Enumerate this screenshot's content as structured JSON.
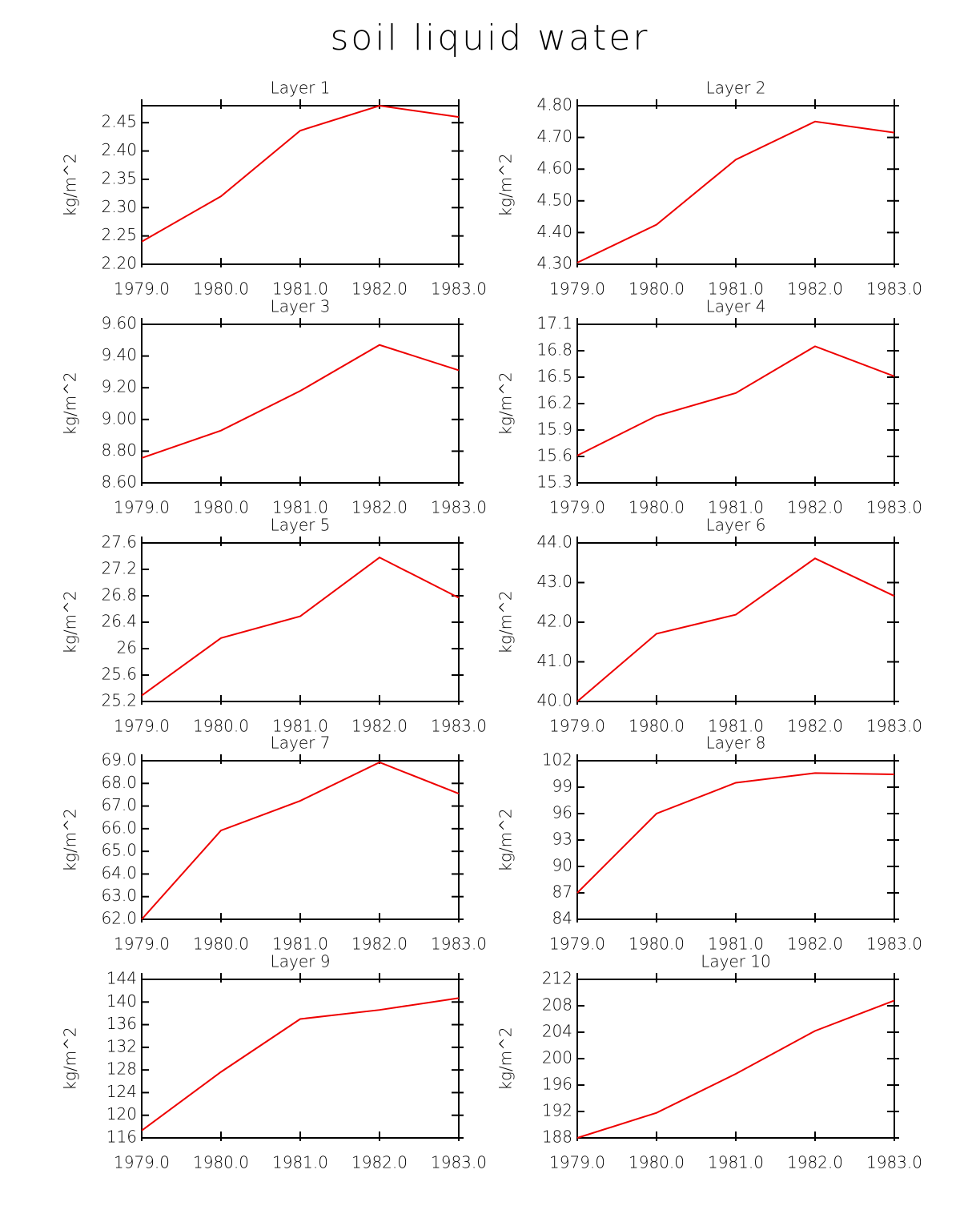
{
  "title": "soil liquid water",
  "chart_data": [
    {
      "type": "line",
      "title": "Layer 1",
      "ylabel": "kg/m^2",
      "x": [
        1979,
        1980,
        1981,
        1982,
        1983
      ],
      "xlim": [
        1979,
        1983
      ],
      "xticks": [
        {
          "value": 1979,
          "label": "1979.0"
        },
        {
          "value": 1980,
          "label": "1980.0"
        },
        {
          "value": 1981,
          "label": "1981.0"
        },
        {
          "value": 1982,
          "label": "1982.0"
        },
        {
          "value": 1983,
          "label": "1983.0"
        }
      ],
      "ylim": [
        2.2,
        2.48
      ],
      "yticks": [
        {
          "value": 2.2,
          "label": "2.20"
        },
        2.25,
        {
          "value": 2.3,
          "label": "2.30"
        },
        2.35,
        {
          "value": 2.4,
          "label": "2.40"
        },
        2.45
      ],
      "color": "#ee0000",
      "values": [
        2.24,
        2.32,
        2.436,
        2.48,
        2.46
      ]
    },
    {
      "type": "line",
      "title": "Layer 2",
      "ylabel": "kg/m^2",
      "x": [
        1979,
        1980,
        1981,
        1982,
        1983
      ],
      "xlim": [
        1979,
        1983
      ],
      "xticks": [
        {
          "value": 1979,
          "label": "1979.0"
        },
        {
          "value": 1980,
          "label": "1980.0"
        },
        {
          "value": 1981,
          "label": "1981.0"
        },
        {
          "value": 1982,
          "label": "1982.0"
        },
        {
          "value": 1983,
          "label": "1983.0"
        }
      ],
      "ylim": [
        4.3,
        4.8
      ],
      "yticks": [
        {
          "value": 4.3,
          "label": "4.30"
        },
        {
          "value": 4.4,
          "label": "4.40"
        },
        {
          "value": 4.5,
          "label": "4.50"
        },
        {
          "value": 4.6,
          "label": "4.60"
        },
        {
          "value": 4.7,
          "label": "4.70"
        },
        {
          "value": 4.8,
          "label": "4.80"
        }
      ],
      "color": "#ee0000",
      "values": [
        4.305,
        4.425,
        4.63,
        4.75,
        4.715
      ]
    },
    {
      "type": "line",
      "title": "Layer 3",
      "ylabel": "kg/m^2",
      "x": [
        1979,
        1980,
        1981,
        1982,
        1983
      ],
      "xlim": [
        1979,
        1983
      ],
      "xticks": [
        {
          "value": 1979,
          "label": "1979.0"
        },
        {
          "value": 1980,
          "label": "1980.0"
        },
        {
          "value": 1981,
          "label": "1981.0"
        },
        {
          "value": 1982,
          "label": "1982.0"
        },
        {
          "value": 1983,
          "label": "1983.0"
        }
      ],
      "ylim": [
        8.6,
        9.6
      ],
      "yticks": [
        {
          "value": 8.6,
          "label": "8.60"
        },
        {
          "value": 8.8,
          "label": "8.80"
        },
        {
          "value": 9.0,
          "label": "9.00"
        },
        {
          "value": 9.2,
          "label": "9.20"
        },
        {
          "value": 9.4,
          "label": "9.40"
        },
        {
          "value": 9.6,
          "label": "9.60"
        }
      ],
      "color": "#ee0000",
      "values": [
        8.757,
        8.93,
        9.18,
        9.47,
        9.31
      ]
    },
    {
      "type": "line",
      "title": "Layer 4",
      "ylabel": "kg/m^2",
      "x": [
        1979,
        1980,
        1981,
        1982,
        1983
      ],
      "xlim": [
        1979,
        1983
      ],
      "xticks": [
        {
          "value": 1979,
          "label": "1979.0"
        },
        {
          "value": 1980,
          "label": "1980.0"
        },
        {
          "value": 1981,
          "label": "1981.0"
        },
        {
          "value": 1982,
          "label": "1982.0"
        },
        {
          "value": 1983,
          "label": "1983.0"
        }
      ],
      "ylim": [
        15.3,
        17.1
      ],
      "yticks": [
        15.3,
        15.6,
        15.9,
        16.2,
        16.5,
        16.8,
        17.1
      ],
      "color": "#ee0000",
      "values": [
        15.61,
        16.06,
        16.32,
        16.85,
        16.51
      ]
    },
    {
      "type": "line",
      "title": "Layer 5",
      "ylabel": "kg/m^2",
      "x": [
        1979,
        1980,
        1981,
        1982,
        1983
      ],
      "xlim": [
        1979,
        1983
      ],
      "xticks": [
        {
          "value": 1979,
          "label": "1979.0"
        },
        {
          "value": 1980,
          "label": "1980.0"
        },
        {
          "value": 1981,
          "label": "1981.0"
        },
        {
          "value": 1982,
          "label": "1982.0"
        },
        {
          "value": 1983,
          "label": "1983.0"
        }
      ],
      "ylim": [
        25.2,
        27.6
      ],
      "yticks": [
        25.2,
        25.6,
        26.0,
        26.4,
        26.8,
        27.2,
        27.6
      ],
      "color": "#ee0000",
      "values": [
        25.29,
        26.16,
        26.49,
        27.38,
        26.77
      ]
    },
    {
      "type": "line",
      "title": "Layer 6",
      "ylabel": "kg/m^2",
      "x": [
        1979,
        1980,
        1981,
        1982,
        1983
      ],
      "xlim": [
        1979,
        1983
      ],
      "xticks": [
        {
          "value": 1979,
          "label": "1979.0"
        },
        {
          "value": 1980,
          "label": "1980.0"
        },
        {
          "value": 1981,
          "label": "1981.0"
        },
        {
          "value": 1982,
          "label": "1982.0"
        },
        {
          "value": 1983,
          "label": "1983.0"
        }
      ],
      "ylim": [
        40,
        44
      ],
      "yticks": [
        {
          "value": 40,
          "label": "40.0"
        },
        {
          "value": 41,
          "label": "41.0"
        },
        {
          "value": 42,
          "label": "42.0"
        },
        {
          "value": 43,
          "label": "43.0"
        },
        {
          "value": 44,
          "label": "44.0"
        }
      ],
      "color": "#ee0000",
      "values": [
        40.0,
        41.71,
        42.19,
        43.61,
        42.66
      ]
    },
    {
      "type": "line",
      "title": "Layer 7",
      "ylabel": "kg/m^2",
      "x": [
        1979,
        1980,
        1981,
        1982,
        1983
      ],
      "xlim": [
        1979,
        1983
      ],
      "xticks": [
        {
          "value": 1979,
          "label": "1979.0"
        },
        {
          "value": 1980,
          "label": "1980.0"
        },
        {
          "value": 1981,
          "label": "1981.0"
        },
        {
          "value": 1982,
          "label": "1982.0"
        },
        {
          "value": 1983,
          "label": "1983.0"
        }
      ],
      "ylim": [
        62,
        69
      ],
      "yticks": [
        {
          "value": 62,
          "label": "62.0"
        },
        {
          "value": 63,
          "label": "63.0"
        },
        {
          "value": 64,
          "label": "64.0"
        },
        {
          "value": 65,
          "label": "65.0"
        },
        {
          "value": 66,
          "label": "66.0"
        },
        {
          "value": 67,
          "label": "67.0"
        },
        {
          "value": 68,
          "label": "68.0"
        },
        {
          "value": 69,
          "label": "69.0"
        }
      ],
      "color": "#ee0000",
      "values": [
        62.0,
        65.92,
        67.23,
        68.93,
        67.55
      ]
    },
    {
      "type": "line",
      "title": "Layer 8",
      "ylabel": "kg/m^2",
      "x": [
        1979,
        1980,
        1981,
        1982,
        1983
      ],
      "xlim": [
        1979,
        1983
      ],
      "xticks": [
        {
          "value": 1979,
          "label": "1979.0"
        },
        {
          "value": 1980,
          "label": "1980.0"
        },
        {
          "value": 1981,
          "label": "1981.0"
        },
        {
          "value": 1982,
          "label": "1982.0"
        },
        {
          "value": 1983,
          "label": "1983.0"
        }
      ],
      "ylim": [
        84,
        102
      ],
      "yticks": [
        84,
        87,
        90,
        93,
        96,
        99,
        102
      ],
      "color": "#ee0000",
      "values": [
        87.0,
        96.0,
        99.5,
        100.6,
        100.45
      ]
    },
    {
      "type": "line",
      "title": "Layer 9",
      "ylabel": "kg/m^2",
      "x": [
        1979,
        1980,
        1981,
        1982,
        1983
      ],
      "xlim": [
        1979,
        1983
      ],
      "xticks": [
        {
          "value": 1979,
          "label": "1979.0"
        },
        {
          "value": 1980,
          "label": "1980.0"
        },
        {
          "value": 1981,
          "label": "1981.0"
        },
        {
          "value": 1982,
          "label": "1982.0"
        },
        {
          "value": 1983,
          "label": "1983.0"
        }
      ],
      "ylim": [
        116,
        144
      ],
      "yticks": [
        116,
        120,
        124,
        128,
        132,
        136,
        140,
        144
      ],
      "color": "#ee0000",
      "values": [
        117.3,
        127.65,
        137.0,
        138.6,
        140.7
      ]
    },
    {
      "type": "line",
      "title": "Layer 10",
      "ylabel": "kg/m^2",
      "x": [
        1979,
        1980,
        1981,
        1982,
        1983
      ],
      "xlim": [
        1979,
        1983
      ],
      "xticks": [
        {
          "value": 1979,
          "label": "1979.0"
        },
        {
          "value": 1980,
          "label": "1980.0"
        },
        {
          "value": 1981,
          "label": "1981.0"
        },
        {
          "value": 1982,
          "label": "1982.0"
        },
        {
          "value": 1983,
          "label": "1983.0"
        }
      ],
      "ylim": [
        188,
        212
      ],
      "yticks": [
        188,
        192,
        196,
        200,
        204,
        208,
        212
      ],
      "color": "#ee0000",
      "values": [
        188.0,
        191.8,
        197.7,
        204.2,
        208.8
      ]
    }
  ]
}
